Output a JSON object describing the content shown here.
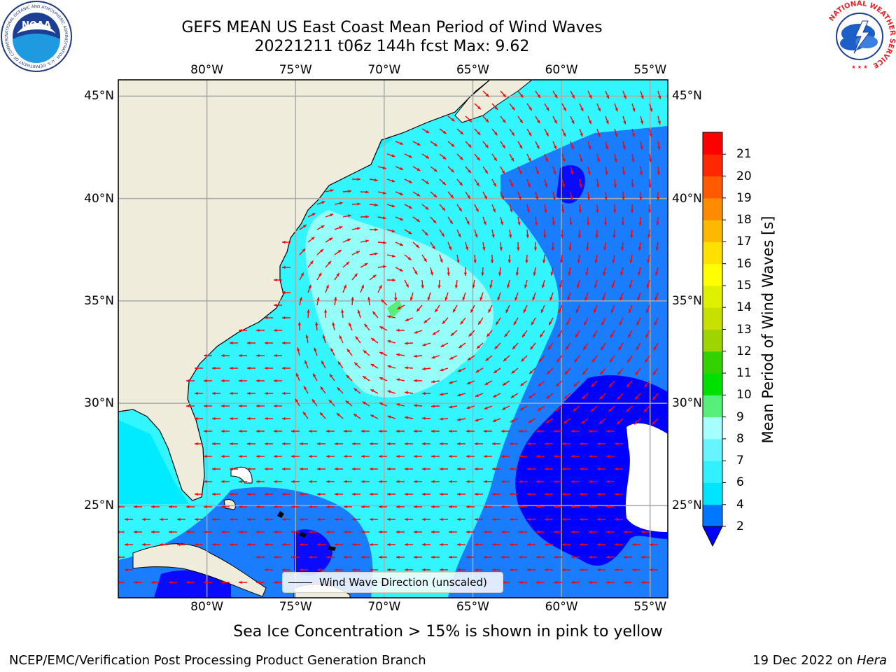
{
  "header": {
    "title_line1": "GEFS MEAN US East Coast Mean Period of Wind Waves",
    "title_line2": "20221211 t06z 144h fcst   Max: 9.62",
    "noaa_logo_text": "NOAA",
    "noaa_ring_text": "NATIONAL OCEANIC AND ATMOSPHERIC ADMINISTRATION · U.S. DEPARTMENT OF COMMERCE",
    "nws_ring_text": "NATIONAL WEATHER SERVICE"
  },
  "map": {
    "lon_labels": [
      "80°W",
      "75°W",
      "70°W",
      "65°W",
      "60°W",
      "55°W"
    ],
    "lat_labels": [
      "45°N",
      "40°N",
      "35°N",
      "30°N",
      "25°N"
    ],
    "extent": {
      "lon_min": -85,
      "lon_max": -54,
      "lat_min": 20.5,
      "lat_max": 45.8
    },
    "legend_label": "Wind Wave Direction (unscaled)",
    "land_color": "#efecdc",
    "arrow_color": "#ff0000"
  },
  "colorbar": {
    "label": "Mean Period of Wind Waves [s]",
    "ticks": [
      "2",
      "4",
      "6",
      "7",
      "8",
      "9",
      "10",
      "11",
      "12",
      "13",
      "14",
      "15",
      "16",
      "17",
      "18",
      "19",
      "20",
      "21"
    ],
    "colors": [
      "#0077ff",
      "#00e5ff",
      "#33f0ff",
      "#66f5ff",
      "#a6ffff",
      "#55f07a",
      "#00e000",
      "#33d100",
      "#9ed400",
      "#c8e000",
      "#dff000",
      "#ffff00",
      "#ffe000",
      "#ffb800",
      "#ff8c00",
      "#ff5a00",
      "#ff2800",
      "#ff0000"
    ],
    "under_color": "#0000ff"
  },
  "footer": {
    "note": "Sea Ice Concentration > 15% is shown in pink to yellow",
    "left": "NCEP/EMC/Verification Post Processing Product Generation Branch",
    "right_prefix": "19 Dec 2022 on ",
    "right_machine": "Hera"
  }
}
